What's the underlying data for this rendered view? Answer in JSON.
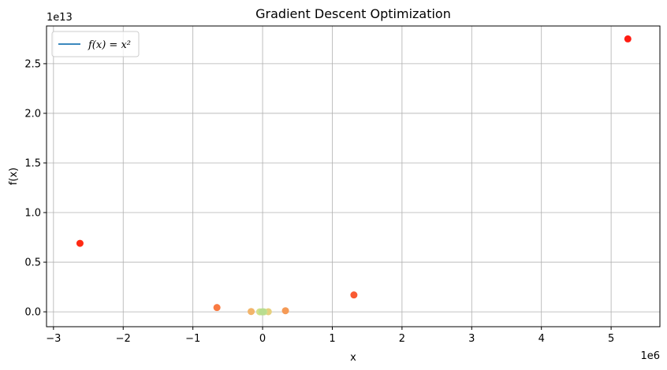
{
  "chart_data": {
    "type": "scatter",
    "title": "Gradient Descent Optimization",
    "xlabel": "x",
    "ylabel": "f(x)",
    "x_offset_label": "1e6",
    "y_offset_label": "1e13",
    "xlim": [
      -3.1,
      5.7
    ],
    "ylim": [
      -0.15,
      2.88
    ],
    "x_ticks": [
      -3,
      -2,
      -1,
      0,
      1,
      2,
      3,
      4,
      5
    ],
    "x_tick_labels": [
      "−3",
      "−2",
      "−1",
      "0",
      "1",
      "2",
      "3",
      "4",
      "5"
    ],
    "y_ticks": [
      0.0,
      0.5,
      1.0,
      1.5,
      2.0,
      2.5
    ],
    "y_tick_labels": [
      "0.0",
      "0.5",
      "1.0",
      "1.5",
      "2.0",
      "2.5"
    ],
    "grid": true,
    "legend": {
      "placement": "top-left",
      "entries": [
        {
          "label": "f(x) = x²",
          "color": "#1f77b4",
          "style": "line"
        }
      ]
    },
    "points": [
      {
        "x": 5.24,
        "y": 2.75,
        "color": "#ff1c12"
      },
      {
        "x": -2.62,
        "y": 0.69,
        "color": "#ff2a14"
      },
      {
        "x": 1.31,
        "y": 0.17,
        "color": "#f95a32"
      },
      {
        "x": -0.655,
        "y": 0.043,
        "color": "#f97a42"
      },
      {
        "x": 0.328,
        "y": 0.011,
        "color": "#f59a56"
      },
      {
        "x": -0.164,
        "y": 0.003,
        "color": "#f2b46a"
      },
      {
        "x": 0.082,
        "y": 0.001,
        "color": "#e6d07e"
      },
      {
        "x": -0.041,
        "y": 0.0002,
        "color": "#d4e08a"
      },
      {
        "x": 0.02,
        "y": 0.0,
        "color": "#c8e08e"
      },
      {
        "x": -0.01,
        "y": 0.0,
        "color": "#bfe090"
      },
      {
        "x": 0.005,
        "y": 0.0,
        "color": "#b8dd90"
      }
    ]
  }
}
